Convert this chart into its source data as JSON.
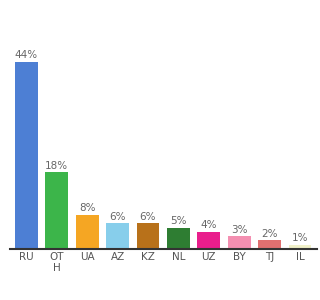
{
  "categories": [
    "RU",
    "OTH",
    "UA",
    "AZ",
    "KZ",
    "NL",
    "UZ",
    "BY",
    "TJ",
    "IL"
  ],
  "x_labels": [
    "RU",
    "OT\nH",
    "UA",
    "AZ",
    "KZ",
    "NL",
    "UZ",
    "BY",
    "TJ",
    "IL"
  ],
  "values": [
    44,
    18,
    8,
    6,
    6,
    5,
    4,
    3,
    2,
    1
  ],
  "bar_colors": [
    "#4d7fd4",
    "#3cb54a",
    "#f5a623",
    "#87ceeb",
    "#b8711a",
    "#2e7d32",
    "#e91e8c",
    "#f48fb1",
    "#e07070",
    "#f0f0c8"
  ],
  "background_color": "#ffffff",
  "label_fontsize": 7.5,
  "value_fontsize": 7.5
}
